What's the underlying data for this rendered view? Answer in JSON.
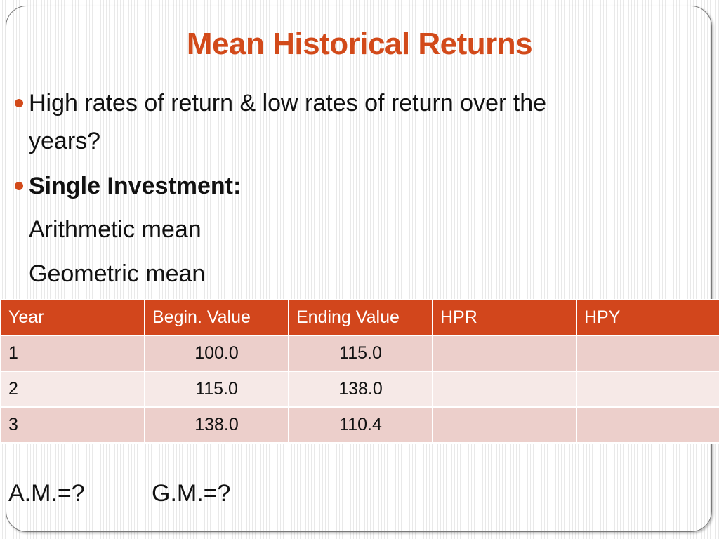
{
  "title": "Mean Historical Returns",
  "bullets": [
    {
      "line1": "High rates of return & low rates of return over the",
      "line2": "years?"
    },
    {
      "text": "Single Investment:"
    }
  ],
  "sub_items": [
    "Arithmetic mean",
    "Geometric mean"
  ],
  "table": {
    "headers": [
      "Year",
      "Begin. Value",
      "Ending Value",
      "HPR",
      "HPY"
    ],
    "rows": [
      [
        "1",
        "100.0",
        "115.0",
        "",
        ""
      ],
      [
        "2",
        "115.0",
        "138.0",
        "",
        ""
      ],
      [
        "3",
        "138.0",
        "110.4",
        "",
        ""
      ]
    ]
  },
  "footer": {
    "am": "A.M.=?",
    "gm": "G.M.=?"
  },
  "colors": {
    "accent": "#d24a1a",
    "header_bg": "#d2461c",
    "row_odd": "#eccfcb",
    "row_even": "#f6e9e7"
  }
}
